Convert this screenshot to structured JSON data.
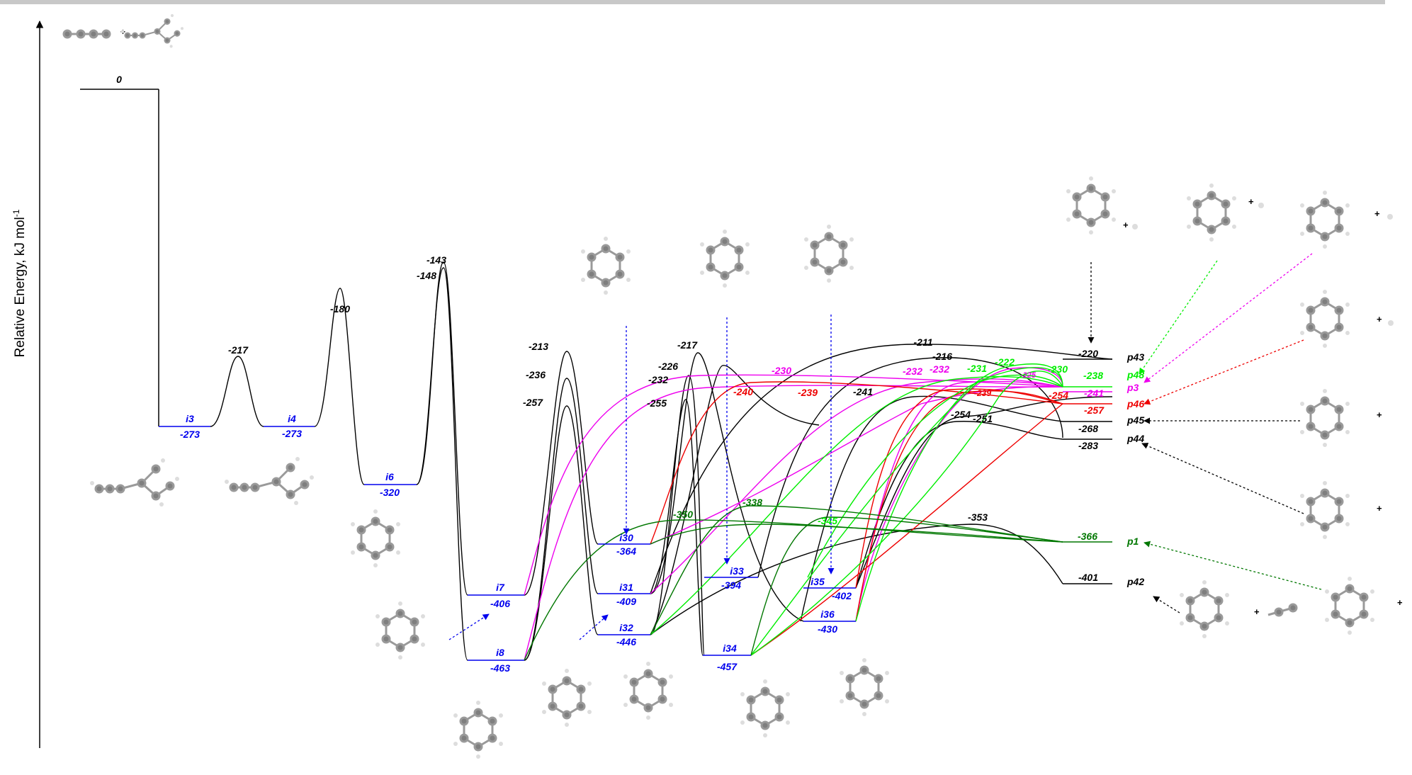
{
  "axis": {
    "ylabel": "Relative Energy, kJ mol",
    "ylabel_sup": "-1"
  },
  "chart_data": {
    "type": "energy-profile",
    "ylabel": "Relative Energy, kJ mol-1",
    "reactants": {
      "label": "",
      "value": 0
    },
    "intermediates": [
      {
        "name": "i3",
        "value": -273
      },
      {
        "name": "i4",
        "value": -273
      },
      {
        "name": "i6",
        "value": -320
      },
      {
        "name": "i7",
        "value": -406
      },
      {
        "name": "i8",
        "value": -463
      },
      {
        "name": "i30",
        "value": -364
      },
      {
        "name": "i31",
        "value": -409
      },
      {
        "name": "i32",
        "value": -446
      },
      {
        "name": "i33",
        "value": -394
      },
      {
        "name": "i34",
        "value": -457
      },
      {
        "name": "i35",
        "value": -402
      },
      {
        "name": "i36",
        "value": -430
      }
    ],
    "products": [
      {
        "name": "p43",
        "value": -220
      },
      {
        "name": "p48",
        "value": -238
      },
      {
        "name": "p3",
        "value": -241
      },
      {
        "name": "p46",
        "value": -257
      },
      {
        "name": "p45",
        "value": -268
      },
      {
        "name": "p44",
        "value": -283
      },
      {
        "name": "p1",
        "value": -366
      },
      {
        "name": "p42",
        "value": -401
      }
    ],
    "barrier_labels": [
      "-217",
      "-180",
      "-143",
      "-148",
      "-213",
      "-236",
      "-257",
      "-217",
      "-226",
      "-232",
      "-255",
      "-230",
      "-240",
      "-239",
      "-241",
      "-211",
      "-216",
      "-232",
      "-232",
      "-231",
      "-222",
      "-225",
      "-230",
      "-239",
      "-254",
      "-254",
      "-251",
      "-350",
      "-338",
      "-345",
      "-353"
    ]
  },
  "labels": {
    "e0": "0",
    "e217a": "-217",
    "e180": "-180",
    "e143": "-143",
    "e148": "-148",
    "e213": "-213",
    "e236": "-236",
    "e257": "-257",
    "e217b": "-217",
    "e226": "-226",
    "e232": "-232",
    "e255": "-255",
    "e230m": "-230",
    "e240": "-240",
    "e239r": "-239",
    "e241k": "-241",
    "e211": "-211",
    "e216": "-216",
    "e232m1": "-232",
    "e232m2": "-232",
    "e231": "-231",
    "e222": "-222",
    "e225": "-225",
    "e230g": "-230",
    "e239r2": "-239",
    "e254r": "-254",
    "e254k": "-254",
    "e251": "-251",
    "e350": "-350",
    "e338": "-338",
    "e345": "-345",
    "e353": "-353",
    "i3": "i3",
    "v_i3": "-273",
    "i4": "i4",
    "v_i4": "-273",
    "i6": "i6",
    "v_i6": "-320",
    "i7": "i7",
    "v_i7": "-406",
    "i8": "i8",
    "v_i8": "-463",
    "i30": "i30",
    "v_i30": "-364",
    "i31": "i31",
    "v_i31": "-409",
    "i32": "i32",
    "v_i32": "-446",
    "i33": "i33",
    "v_i33": "-394",
    "i34": "i34",
    "v_i34": "-457",
    "i35": "i35",
    "v_i35": "-402",
    "i36": "i36",
    "v_i36": "-430",
    "p43": "p43",
    "v_p43": "-220",
    "p48": "p48",
    "v_p48": "-238",
    "p3": "p3",
    "v_p3": "-241",
    "p46": "p46",
    "v_p46": "-257",
    "p45": "p45",
    "v_p45": "-268",
    "p44": "p44",
    "v_p44": "-283",
    "p1": "p1",
    "v_p1": "-366",
    "p42": "p42",
    "v_p42": "-401",
    "plus": "+"
  },
  "colors": {
    "black": "#000000",
    "blue": "#0000ee",
    "magenta": "#ee00ee",
    "red": "#ee0000",
    "green": "#00ee00",
    "darkgreen": "#007700"
  }
}
